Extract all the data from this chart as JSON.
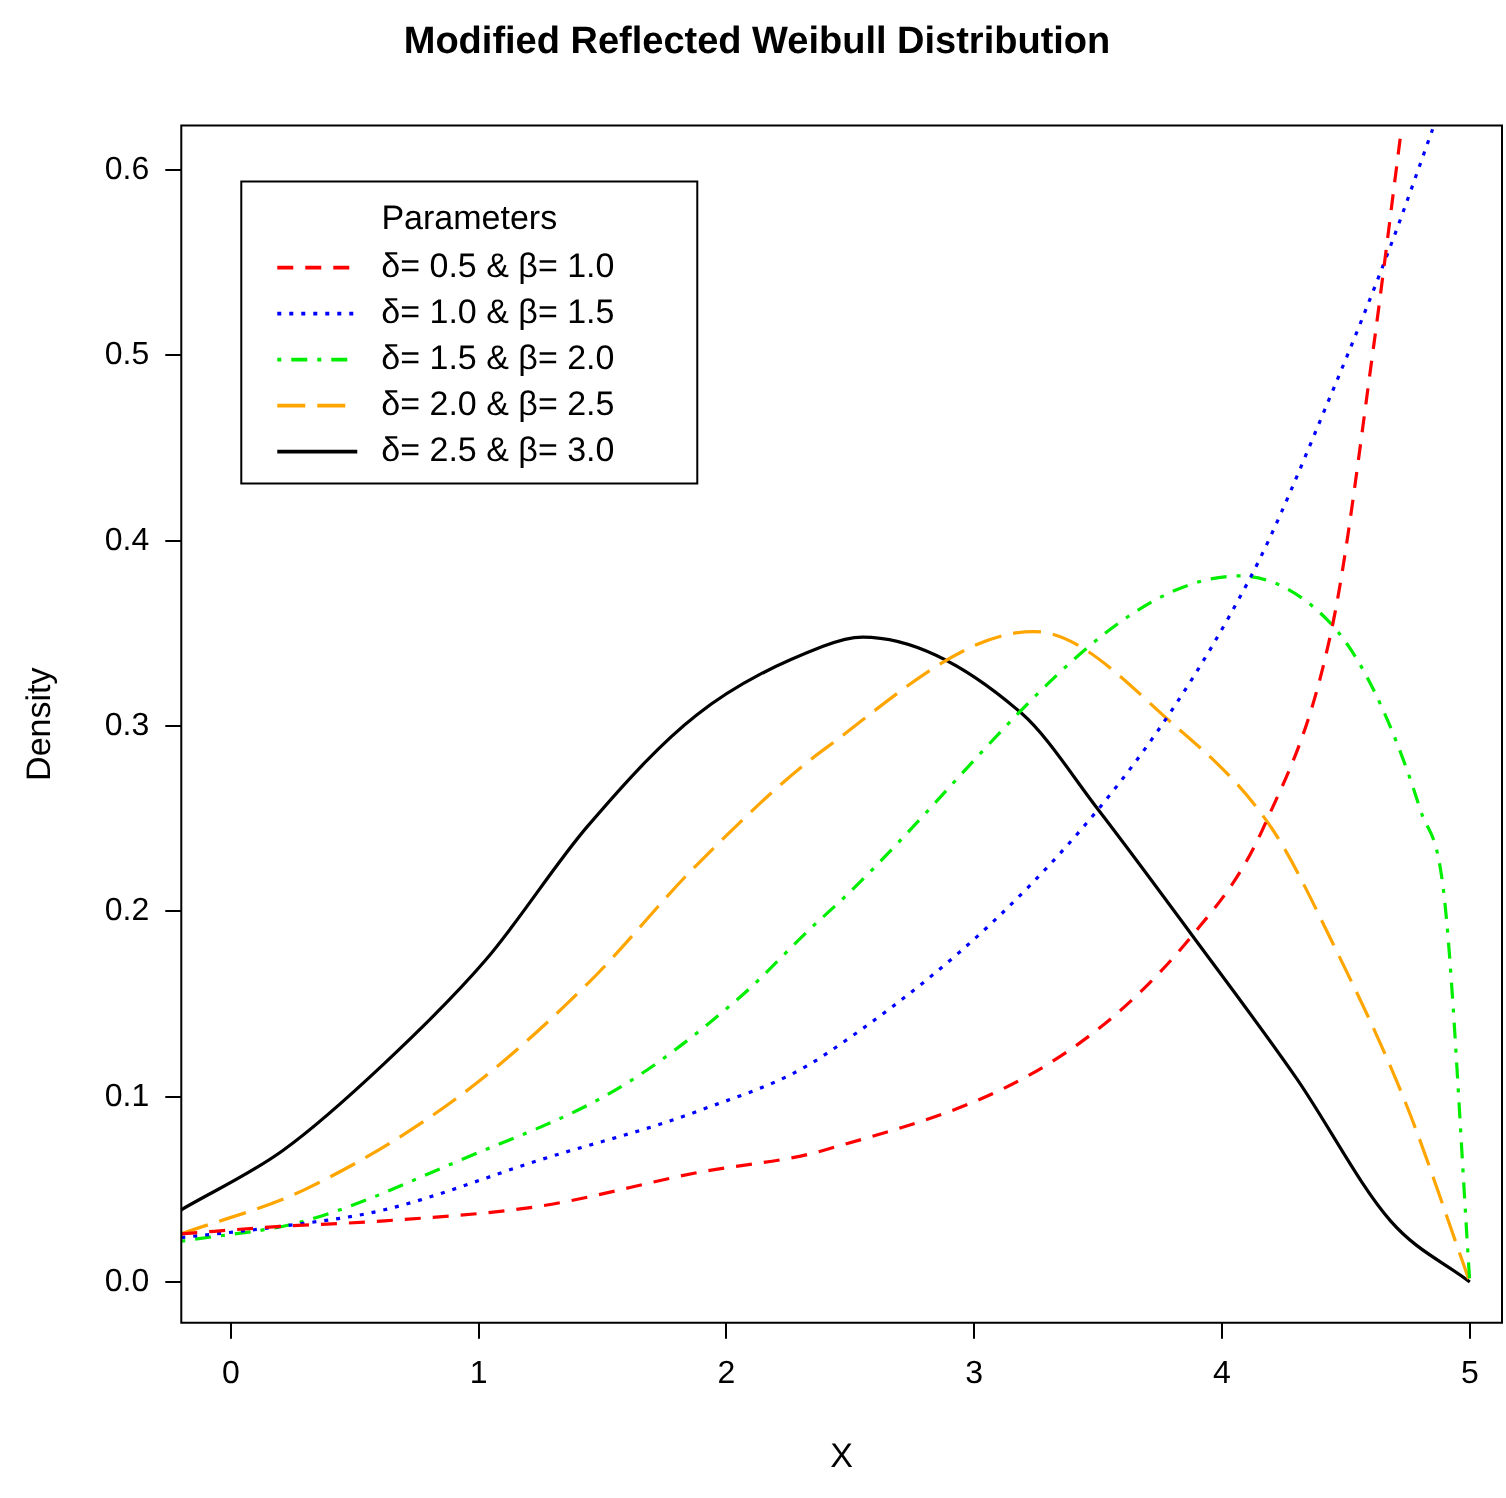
{
  "chart_data": {
    "type": "line",
    "title": "Modified Reflected Weibull Distribution",
    "xlabel": "X",
    "ylabel": "Density",
    "legend_title": "Parameters",
    "legend": "top left",
    "grid": false,
    "marker": "none",
    "xlim": [
      -0.2,
      5.13
    ],
    "xticks": [
      0,
      1,
      2,
      3,
      4,
      5
    ],
    "ylim": [
      -0.022,
      0.624
    ],
    "yticks": [
      {
        "value": 0,
        "label": "0.0"
      },
      0.1,
      0.2,
      0.3,
      0.4,
      0.5,
      0.6
    ],
    "series": [
      {
        "name": "δ= 0.5 & β= 1.0",
        "color": "#ff0000",
        "line_style": "dashed",
        "x": [
          -0.2,
          0.2,
          0.62,
          1.25,
          1.88,
          2.39,
          3.35,
          3.88,
          4.17,
          4.45,
          4.61,
          4.72
        ],
        "values": [
          0.026,
          0.03,
          0.033,
          0.041,
          0.059,
          0.071,
          0.122,
          0.187,
          0.246,
          0.357,
          0.503,
          0.618
        ]
      },
      {
        "name": "δ= 1.0 & β= 1.5",
        "color": "#0000ff",
        "line_style": "dotted",
        "x": [
          -0.2,
          0.2,
          0.62,
          1.25,
          1.88,
          2.39,
          3.5,
          4.11,
          4.45,
          4.68,
          4.85
        ],
        "values": [
          0.024,
          0.03,
          0.039,
          0.066,
          0.092,
          0.122,
          0.255,
          0.379,
          0.482,
          0.559,
          0.622
        ]
      },
      {
        "name": "δ= 1.5 & β= 2.0",
        "color": "#00ee00",
        "line_style": "dashdot",
        "x": [
          -0.2,
          0.3,
          0.93,
          1.57,
          2.04,
          2.39,
          4.07,
          4.42,
          4.61,
          4.8,
          4.9,
          5.0
        ],
        "values": [
          0.022,
          0.033,
          0.066,
          0.105,
          0.152,
          0.197,
          0.381,
          0.358,
          0.32,
          0.255,
          0.204,
          0.0
        ]
      },
      {
        "name": "δ= 2.0 & β= 2.5",
        "color": "#ffa500",
        "line_style": "longdash",
        "x": [
          -0.2,
          0.3,
          0.93,
          1.44,
          1.88,
          2.39,
          3.24,
          3.82,
          4.2,
          4.45,
          4.74,
          5.0
        ],
        "values": [
          0.026,
          0.05,
          0.101,
          0.161,
          0.225,
          0.287,
          0.351,
          0.299,
          0.245,
          0.182,
          0.097,
          0.0
        ]
      },
      {
        "name": "δ= 2.5 & β= 3.0",
        "color": "#000000",
        "line_style": "solid",
        "x": [
          -0.2,
          0.21,
          0.62,
          1.03,
          1.44,
          1.88,
          2.39,
          2.55,
          3.19,
          3.5,
          3.88,
          4.3,
          4.68,
          5.0
        ],
        "values": [
          0.039,
          0.071,
          0.118,
          0.174,
          0.246,
          0.306,
          0.343,
          0.348,
          0.307,
          0.255,
          0.187,
          0.11,
          0.033,
          0.0
        ]
      }
    ]
  }
}
